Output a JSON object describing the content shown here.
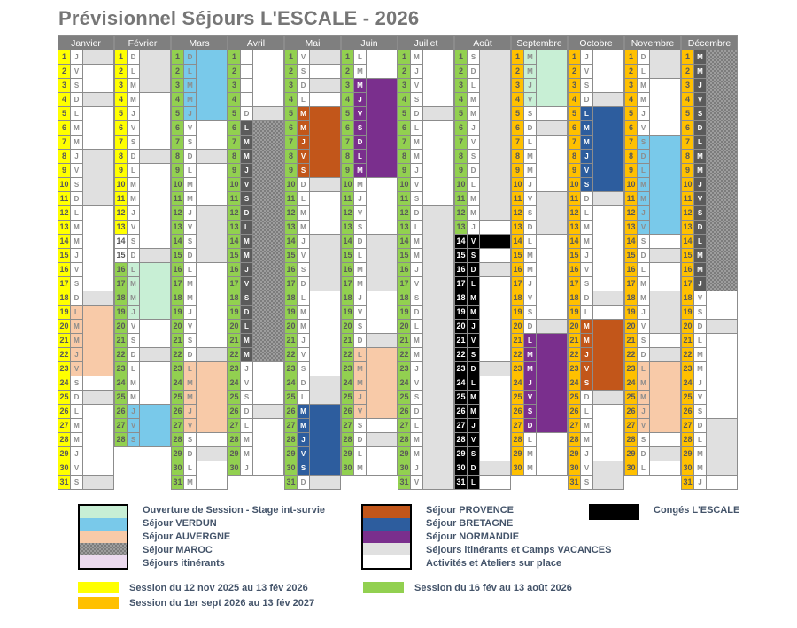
{
  "title": "Prévisionnel Séjours L'ESCALE - 2026",
  "encoding": "each day string = [day letter or '-', number-cell color key, letter-cell color key, wide-cell color key]",
  "palette": {
    "Y": "#FFFF00",
    "G": "#92D050",
    "O": "#FFC000",
    "W": "#FFFFFF",
    "K": "#000000",
    "m": "#C8EFD5",
    "s": "#79C9EA",
    "a": "#F8CAA8",
    "g": "#E0E0E0",
    "r": "#C2561A",
    "b": "#2D5D9E",
    "p": "#7A2F8D",
    "M": "#5B5B5B",
    "H": "hatch",
    "L": "#EBD9EE",
    "grid": "#8c8c8c",
    "header_bg": "#7f7f7f",
    "legend_text": "#44546A",
    "title_text": "#767676"
  },
  "months": [
    {
      "name": "Janvier",
      "days": [
        "JYWg",
        "VYWW",
        "SYWW",
        "DYWg",
        "LYWW",
        "MYWW",
        "MYWW",
        "JYWg",
        "VYWg",
        "SYWg",
        "DYWg",
        "LYWW",
        "MYWW",
        "MYWW",
        "JYWW",
        "VYWW",
        "SYWW",
        "DYWg",
        "LYaa",
        "MYaa",
        "MYaa",
        "JYaa",
        "VYaa",
        "SYWW",
        "DYWg",
        "LYWW",
        "MYWW",
        "MYWW",
        "JYWW",
        "VYWW",
        "SYWg"
      ]
    },
    {
      "name": "Février",
      "days": [
        "DYWg",
        "LYWg",
        "MYWg",
        "MYWW",
        "JYWW",
        "VYWW",
        "SYWW",
        "DYWg",
        "LYWW",
        "MYWW",
        "MYWW",
        "JYWW",
        "VYWW",
        "SWWW",
        "DWWg",
        "LGmm",
        "MGmm",
        "MGmm",
        "JGmm",
        "VGWW",
        "SGWW",
        "DGWg",
        "LGWW",
        "MGWW",
        "MGWW",
        "JGss",
        "VGss",
        "SGss"
      ]
    },
    {
      "name": "Mars",
      "days": [
        "DGss",
        "LGss",
        "MGss",
        "MGss",
        "JGss",
        "VGWW",
        "SGWW",
        "DGWg",
        "LGWW",
        "MGWW",
        "MGWW",
        "JGWg",
        "VGWg",
        "SGWg",
        "DGWg",
        "LGWW",
        "MGWW",
        "MGWW",
        "JGWW",
        "VGWW",
        "SGWW",
        "DGWg",
        "LGaa",
        "MGaa",
        "MGaa",
        "JGaa",
        "VGaa",
        "SGWW",
        "DGWg",
        "LGWW",
        "MGWW"
      ]
    },
    {
      "name": "Avril",
      "days": [
        "-GWW",
        "-GWW",
        "-GWW",
        "-GWW",
        "DGWg",
        "LGMH",
        "MGMH",
        "MGMH",
        "JGMH",
        "VGMH",
        "SGMH",
        "DGMH",
        "LGMH",
        "MGMH",
        "MGMH",
        "JGMH",
        "VGMH",
        "SGMH",
        "DGMH",
        "LGMH",
        "MGMH",
        "MGMH",
        "JGWW",
        "VGWW",
        "SGWW",
        "DGWg",
        "LGWW",
        "MGWW",
        "MGWW",
        "JGWW"
      ]
    },
    {
      "name": "Mai",
      "days": [
        "VGWg",
        "SGWW",
        "DGWg",
        "LGWW",
        "MGrr",
        "MGrr",
        "JGrr",
        "VGrr",
        "SGrr",
        "DGWg",
        "LGWW",
        "MGWW",
        "MGWW",
        "JGWg",
        "VGWg",
        "SGWg",
        "DGWg",
        "LGWW",
        "MGWW",
        "MGWW",
        "JGWW",
        "VGWW",
        "SGWW",
        "DGWg",
        "LGWg",
        "MGbb",
        "MGbb",
        "JGbb",
        "VGbb",
        "SGbb",
        "DGWg"
      ]
    },
    {
      "name": "Juin",
      "days": [
        "LGWW",
        "MGWW",
        "MGpp",
        "JGpp",
        "VGpp",
        "SGpp",
        "DGpp",
        "LGpp",
        "MGpp",
        "MGWW",
        "JGWW",
        "VGWW",
        "SGWW",
        "DGWg",
        "LGWg",
        "MGWg",
        "MGWg",
        "JGWW",
        "VGWW",
        "SGWW",
        "DGWg",
        "LGaa",
        "MGaa",
        "MGaa",
        "JGaa",
        "VGaa",
        "SGWW",
        "DGWg",
        "LGWW",
        "MGWW"
      ]
    },
    {
      "name": "Juillet",
      "days": [
        "MGWW",
        "JGWW",
        "VGWW",
        "SGWW",
        "DGWg",
        "LGWW",
        "MGWW",
        "MGWW",
        "JGWW",
        "VGWW",
        "SGWW",
        "DGWg",
        "LGWg",
        "MGWg",
        "MGWg",
        "JGWg",
        "VGWg",
        "SGWg",
        "DGWg",
        "LGWg",
        "MGWg",
        "MGWg",
        "JGWg",
        "VGWg",
        "SGWg",
        "DGWg",
        "LGWg",
        "MGWg",
        "MGWg",
        "JGWg",
        "VGWg"
      ]
    },
    {
      "name": "Août",
      "days": [
        "SGWg",
        "DGWg",
        "LGWg",
        "MGWg",
        "MGWg",
        "JGWg",
        "VGWg",
        "SGWg",
        "DGWg",
        "LGWg",
        "MGWg",
        "MGWg",
        "JGWW",
        "VKKK",
        "SKKW",
        "DKKg",
        "LKKW",
        "MKKW",
        "MKKW",
        "JKKW",
        "VKKW",
        "SKKW",
        "DKKg",
        "LKKW",
        "MKKW",
        "MKKW",
        "JKKW",
        "VKKW",
        "SKKW",
        "DKKg",
        "LKKW"
      ]
    },
    {
      "name": "Septembre",
      "days": [
        "MOmm",
        "MOmm",
        "JOmm",
        "VOmm",
        "SOWW",
        "DOWg",
        "LOWW",
        "MOWW",
        "MOWW",
        "JOWW",
        "VOWg",
        "SOWg",
        "DOWg",
        "LOWW",
        "MOWW",
        "MOWW",
        "JOWW",
        "VOWW",
        "SOWW",
        "DOWg",
        "LOpp",
        "MOpp",
        "MOpp",
        "JOpp",
        "VOpp",
        "SOpp",
        "DOpp",
        "LOWW",
        "MOWW",
        "MOWW"
      ]
    },
    {
      "name": "Octobre",
      "days": [
        "JOWW",
        "VOWW",
        "SOWW",
        "DOWg",
        "LObb",
        "MObb",
        "MObb",
        "JObb",
        "VObb",
        "SObb",
        "DOWg",
        "LOWW",
        "MOWW",
        "MOWW",
        "JOWW",
        "VOWW",
        "SOWW",
        "DOWg",
        "LOWW",
        "MOrr",
        "MOrr",
        "JOrr",
        "VOrr",
        "SOrr",
        "DOWg",
        "LOWW",
        "MOWW",
        "MOWW",
        "JOWW",
        "VOWg",
        "SOWg"
      ]
    },
    {
      "name": "Novembre",
      "days": [
        "DOWg",
        "LOWg",
        "MOWW",
        "MOWW",
        "JOWW",
        "VOWW",
        "SOss",
        "DOss",
        "LOss",
        "MOss",
        "MOss",
        "JOss",
        "VOss",
        "SOWW",
        "DOWg",
        "LOWW",
        "MOWW",
        "MOWg",
        "JOWg",
        "VOWg",
        "SOWW",
        "DOWg",
        "LOaa",
        "MOaa",
        "MOaa",
        "JOaa",
        "VOaa",
        "SOWW",
        "DOWg",
        "LOWW"
      ]
    },
    {
      "name": "Décembre",
      "days": [
        "MOMH",
        "MOMH",
        "JOMH",
        "VOMH",
        "SOMH",
        "DOMH",
        "LOMH",
        "MOMH",
        "MOMH",
        "JOMH",
        "VOMH",
        "SOMH",
        "DOMH",
        "LOMH",
        "MOMH",
        "MOMH",
        "JOMH",
        "VOWW",
        "SOWW",
        "DOWg",
        "LOWW",
        "MOWW",
        "MOWW",
        "JOWW",
        "VOWW",
        "SOWW",
        "DOWg",
        "LOWg",
        "MOWg",
        "MOWg",
        "JOWW"
      ]
    }
  ],
  "legend": {
    "groups": [
      {
        "items": [
          {
            "k": "m",
            "label": "Ouverture de Session - Stage int-survie"
          },
          {
            "k": "s",
            "label": "Séjour VERDUN"
          },
          {
            "k": "a",
            "label": "Séjour  AUVERGNE"
          },
          {
            "k": "H",
            "label": "Séjour MAROC"
          },
          {
            "k": "L",
            "label": "Séjours itinérants"
          }
        ]
      },
      {
        "items": [
          {
            "k": "r",
            "label": "Séjour PROVENCE"
          },
          {
            "k": "b",
            "label": "Séjour BRETAGNE"
          },
          {
            "k": "p",
            "label": "Séjour NORMANDIE"
          },
          {
            "k": "g",
            "label": "Séjours itinérants et Camps VACANCES"
          },
          {
            "k": "W",
            "label": "Activités et Ateliers sur place"
          }
        ]
      },
      {
        "items": [
          {
            "k": "K",
            "label": "Congés L'ESCALE"
          }
        ]
      }
    ],
    "sessions": [
      {
        "k": "Y",
        "label": "Session du 12 nov 2025 au 13 fév 2026"
      },
      {
        "k": "O",
        "label": "Session du 1er sept 2026 au 13 fév 2027"
      },
      {
        "k": "G",
        "label": "Session du 16 fév au 13 août 2026"
      }
    ]
  }
}
